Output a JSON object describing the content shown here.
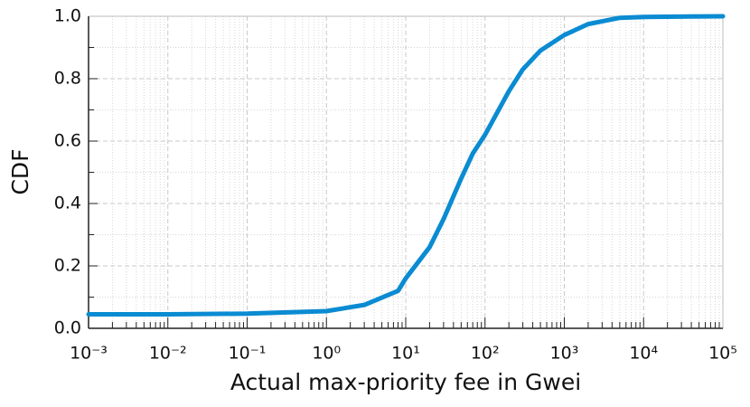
{
  "chart_data": {
    "type": "line",
    "xscale": "log",
    "grid": true,
    "xlabel": "Actual max-priority fee in Gwei",
    "ylabel": "CDF",
    "x": [
      0.001,
      0.01,
      0.1,
      1,
      3,
      8,
      10,
      20,
      30,
      50,
      70,
      100,
      200,
      300,
      500,
      1000,
      2000,
      5000,
      10000,
      100000
    ],
    "series": [
      {
        "name": "CDF",
        "color": "#0a8bd2",
        "values": [
          0.045,
          0.045,
          0.047,
          0.055,
          0.075,
          0.12,
          0.16,
          0.26,
          0.35,
          0.48,
          0.56,
          0.62,
          0.76,
          0.83,
          0.89,
          0.94,
          0.975,
          0.995,
          0.998,
          1.0
        ]
      }
    ],
    "xlim": [
      0.001,
      100000
    ],
    "xticks": [
      {
        "value": 0.001,
        "label": "10⁻³"
      },
      {
        "value": 0.01,
        "label": "10⁻²"
      },
      {
        "value": 0.1,
        "label": "10⁻¹"
      },
      {
        "value": 1,
        "label": "10⁰"
      },
      {
        "value": 10,
        "label": "10¹"
      },
      {
        "value": 100,
        "label": "10²"
      },
      {
        "value": 1000,
        "label": "10³"
      },
      {
        "value": 10000,
        "label": "10⁴"
      },
      {
        "value": 100000,
        "label": "10⁵"
      }
    ],
    "ylim": [
      0,
      1
    ],
    "yticks": [
      {
        "value": 0,
        "label": "0.0"
      },
      0.2,
      0.4,
      0.6,
      0.8,
      {
        "value": 1,
        "label": "1.0"
      }
    ]
  }
}
